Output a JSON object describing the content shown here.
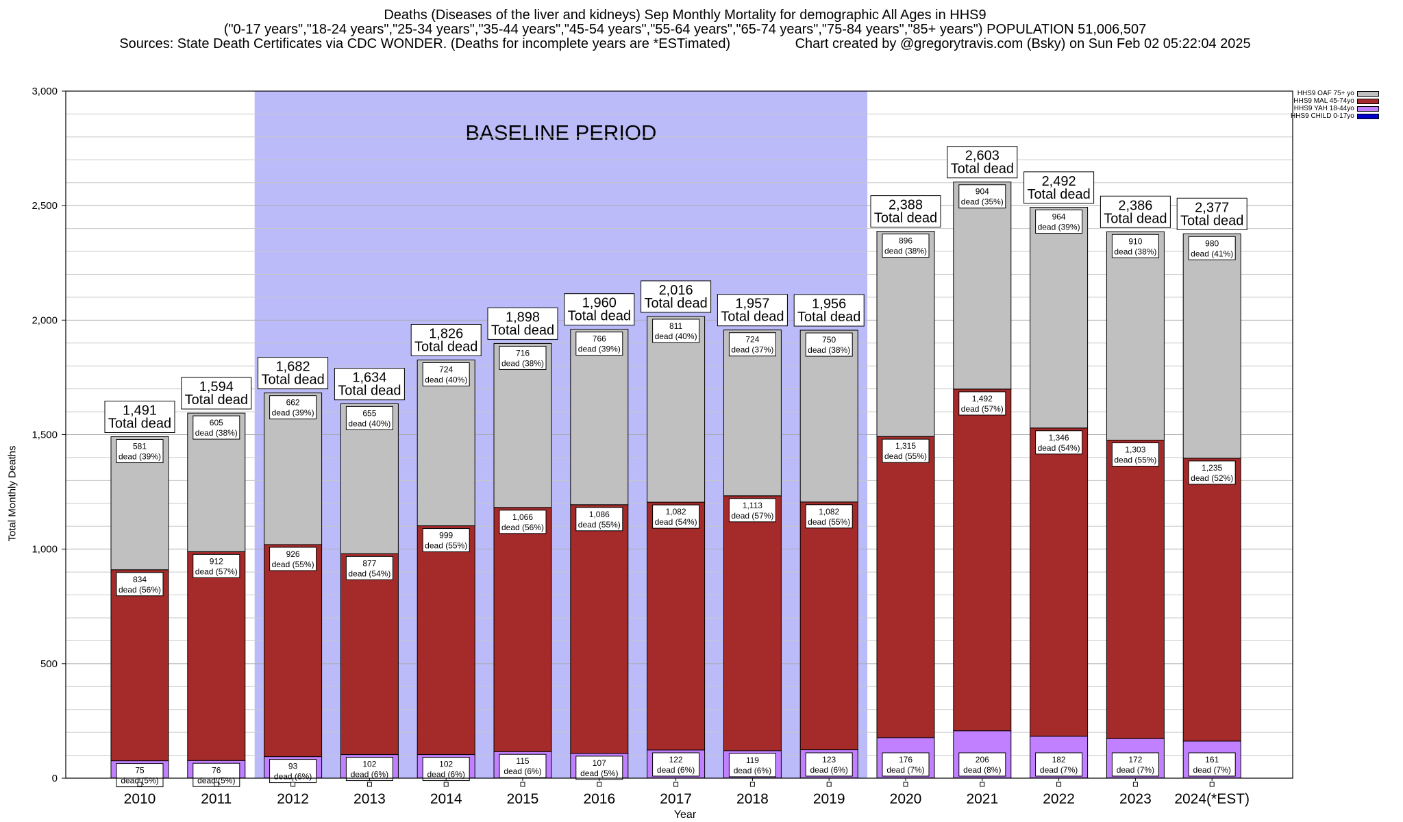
{
  "header": {
    "line1": "Deaths (Diseases of the liver and kidneys) Sep Monthly Mortality for demographic All Ages in HHS9",
    "line2": "(\"0-17 years\",\"18-24 years\",\"25-34 years\",\"35-44 years\",\"45-54 years\",\"55-64 years\",\"65-74 years\",\"75-84 years\",\"85+ years\") POPULATION 51,006,507",
    "line3": "Sources: State Death Certificates via CDC WONDER. (Deaths for incomplete years are *ESTimated)                 Chart created by @gregorytravis.com (Bsky) on Sun Feb 02 05:22:04 2025"
  },
  "colors": {
    "oaf": "#c0c0c0",
    "mal": "#a52a2a",
    "yah": "#c080ff",
    "child": "#0000cc",
    "baseline": "#bbbbfa"
  },
  "chart_data": {
    "type": "bar",
    "stacked": true,
    "xlabel": "Year",
    "ylabel": "Total Monthly Deaths",
    "ylim": [
      0,
      3000
    ],
    "yticks": [
      0,
      500,
      1000,
      1500,
      2000,
      2500,
      3000
    ],
    "ytick_labels": [
      "0",
      "500",
      "1,000",
      "1,500",
      "2,000",
      "2,500",
      "3,000"
    ],
    "grid": true,
    "legend_position": "top-right",
    "baseline_label": "BASELINE PERIOD",
    "baseline_range": [
      "2012",
      "2019"
    ],
    "total_suffix": "Total dead",
    "categories": [
      "2010",
      "2011",
      "2012",
      "2013",
      "2014",
      "2015",
      "2016",
      "2017",
      "2018",
      "2019",
      "2020",
      "2021",
      "2022",
      "2023",
      "2024(*EST)"
    ],
    "totals": [
      1491,
      1594,
      1682,
      1634,
      1826,
      1898,
      1960,
      2016,
      1957,
      1956,
      2388,
      2603,
      2492,
      2386,
      2377
    ],
    "total_labels": [
      "1,491",
      "1,594",
      "1,682",
      "1,634",
      "1,826",
      "1,898",
      "1,960",
      "2,016",
      "1,957",
      "1,956",
      "2,388",
      "2,603",
      "2,492",
      "2,386",
      "2,377"
    ],
    "series": [
      {
        "name": "HHS9 CHILD 0-17yo",
        "values": [
          1,
          1,
          1,
          1,
          1,
          1,
          1,
          1,
          1,
          1,
          1,
          1,
          1,
          1,
          1
        ]
      },
      {
        "name": "HHS9 YAH 18-44yo",
        "values": [
          75,
          76,
          93,
          102,
          102,
          115,
          107,
          122,
          119,
          123,
          176,
          206,
          182,
          172,
          161
        ],
        "labels": [
          "75",
          "76",
          "93",
          "102",
          "102",
          "115",
          "107",
          "122",
          "119",
          "123",
          "176",
          "206",
          "182",
          "172",
          "161"
        ],
        "pct_labels": [
          "dead (5%)",
          "dead (5%)",
          "dead (6%)",
          "dead (6%)",
          "dead (6%)",
          "dead (6%)",
          "dead (5%)",
          "dead (6%)",
          "dead (6%)",
          "dead (6%)",
          "dead (7%)",
          "dead (8%)",
          "dead (7%)",
          "dead (7%)",
          "dead (7%)"
        ]
      },
      {
        "name": "HHS9 MAL 45-74yo",
        "values": [
          834,
          912,
          926,
          877,
          999,
          1066,
          1086,
          1082,
          1113,
          1082,
          1315,
          1492,
          1346,
          1303,
          1235
        ],
        "labels": [
          "834",
          "912",
          "926",
          "877",
          "999",
          "1,066",
          "1,086",
          "1,082",
          "1,113",
          "1,082",
          "1,315",
          "1,492",
          "1,346",
          "1,303",
          "1,235"
        ],
        "pct_labels": [
          "dead (56%)",
          "dead (57%)",
          "dead (55%)",
          "dead (54%)",
          "dead (55%)",
          "dead (56%)",
          "dead (55%)",
          "dead (54%)",
          "dead (57%)",
          "dead (55%)",
          "dead (55%)",
          "dead (57%)",
          "dead (54%)",
          "dead (55%)",
          "dead (52%)"
        ]
      },
      {
        "name": "HHS9 OAF 75+ yo",
        "values": [
          581,
          605,
          662,
          655,
          724,
          716,
          766,
          811,
          724,
          750,
          896,
          904,
          964,
          910,
          980
        ],
        "labels": [
          "581",
          "605",
          "662",
          "655",
          "724",
          "716",
          "766",
          "811",
          "724",
          "750",
          "896",
          "904",
          "964",
          "910",
          "980"
        ],
        "pct_labels": [
          "dead (39%)",
          "dead (38%)",
          "dead (39%)",
          "dead (40%)",
          "dead (40%)",
          "dead (38%)",
          "dead (39%)",
          "dead (40%)",
          "dead (37%)",
          "dead (38%)",
          "dead (38%)",
          "dead (35%)",
          "dead (39%)",
          "dead (38%)",
          "dead (41%)"
        ]
      }
    ],
    "legend_order": [
      "HHS9 OAF 75+ yo",
      "HHS9 MAL 45-74yo",
      "HHS9 YAH 18-44yo",
      "HHS9 CHILD 0-17yo"
    ]
  }
}
